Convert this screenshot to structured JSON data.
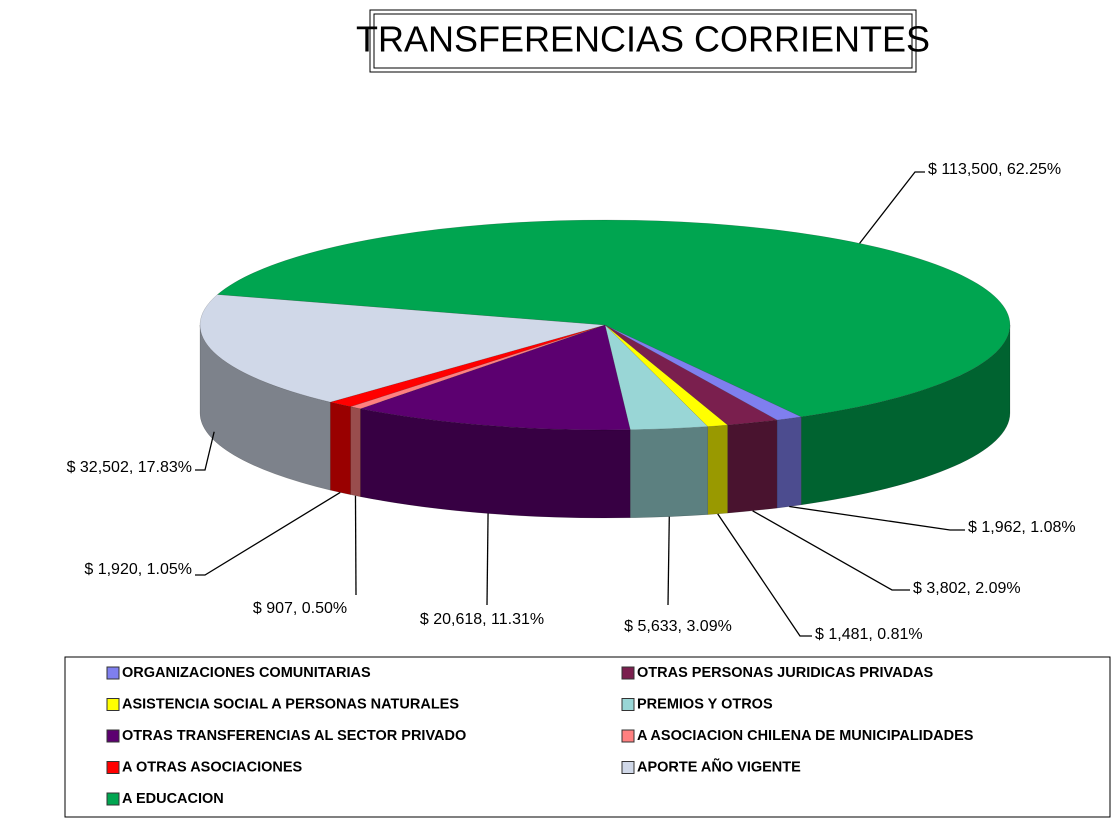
{
  "chart_data": {
    "type": "pie",
    "title": "TRANSFERENCIAS CORRIENTES",
    "categories": [
      "ORGANIZACIONES COMUNITARIAS",
      "OTRAS PERSONAS JURIDICAS PRIVADAS",
      "ASISTENCIA SOCIAL A PERSONAS NATURALES",
      "PREMIOS Y OTROS",
      "OTRAS TRANSFERENCIAS  AL SECTOR PRIVADO",
      "A  ASOCIACION CHILENA DE MUNICIPALIDADES",
      "A OTRAS ASOCIACIONES",
      "APORTE AÑO VIGENTE",
      "A EDUCACION"
    ],
    "values": [
      1962,
      3802,
      1481,
      5633,
      20618,
      907,
      1920,
      32502,
      113500
    ],
    "value_labels": [
      "$ 1,962, 1.08%",
      "$ 3,802, 2.09%",
      "$ 1,481, 0.81%",
      "$ 5,633, 3.09%",
      "$ 20,618, 11.31%",
      "$ 907, 0.50%",
      "$ 1,920, 1.05%",
      "$ 32,502, 17.83%",
      "$ 113,500, 62.25%"
    ],
    "colors": [
      "#7f7fef",
      "#7a1f4e",
      "#ffff00",
      "#99d6d6",
      "#5c0070",
      "#ff8080",
      "#ff0000",
      "#d0d8e8",
      "#00a550"
    ]
  }
}
